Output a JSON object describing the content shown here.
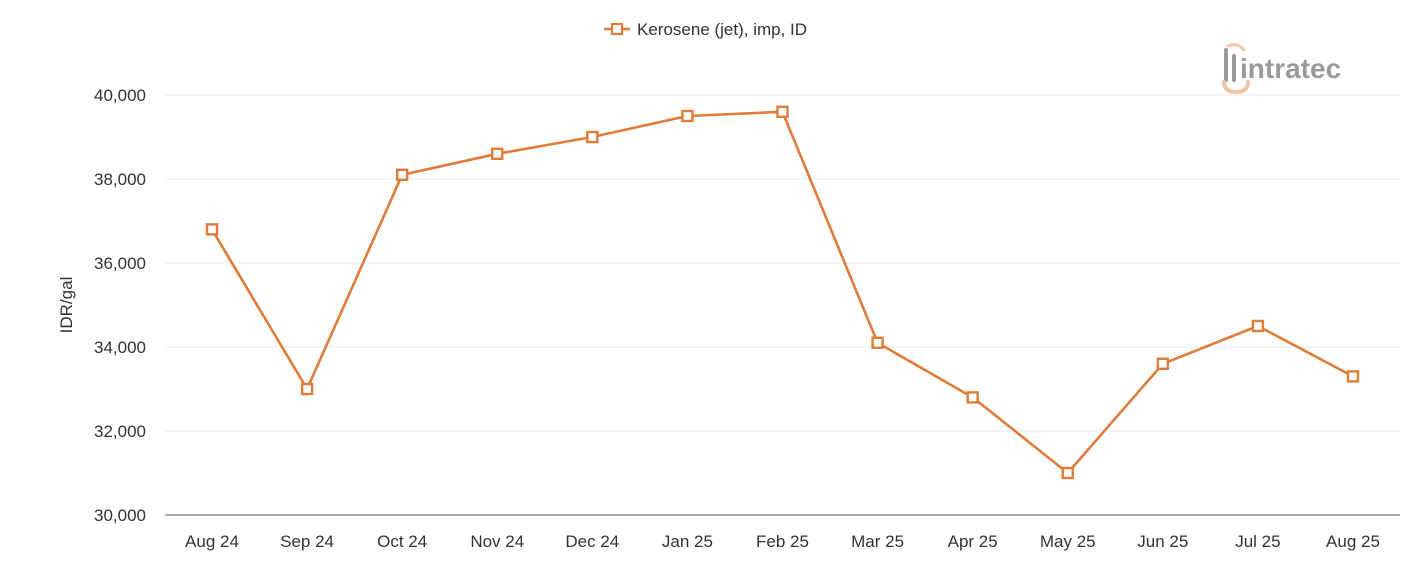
{
  "chart_data": {
    "type": "line",
    "categories": [
      "Aug 24",
      "Sep 24",
      "Oct 24",
      "Nov 24",
      "Dec 24",
      "Jan 25",
      "Feb 25",
      "Mar 25",
      "Apr 25",
      "May 25",
      "Jun 25",
      "Jul 25",
      "Aug 25"
    ],
    "series": [
      {
        "name": "Kerosene (jet), imp, ID",
        "values": [
          36800,
          33000,
          38100,
          38600,
          39000,
          39500,
          39600,
          34100,
          32800,
          31000,
          33600,
          34500,
          33300
        ],
        "color": "#E07B39",
        "marker": "square-open"
      }
    ],
    "ylabel": "IDR/gal",
    "xlabel": "",
    "ylim": [
      30000,
      40000
    ],
    "yticks": [
      "30,000",
      "32,000",
      "34,000",
      "36,000",
      "38,000",
      "40,000"
    ],
    "grid": true,
    "legend": "top-center"
  },
  "logo": {
    "text": "intratec",
    "icon": "intratec-logo-icon",
    "colors": {
      "text": "#9a9a9a",
      "accent": "#F2C7A8"
    }
  }
}
